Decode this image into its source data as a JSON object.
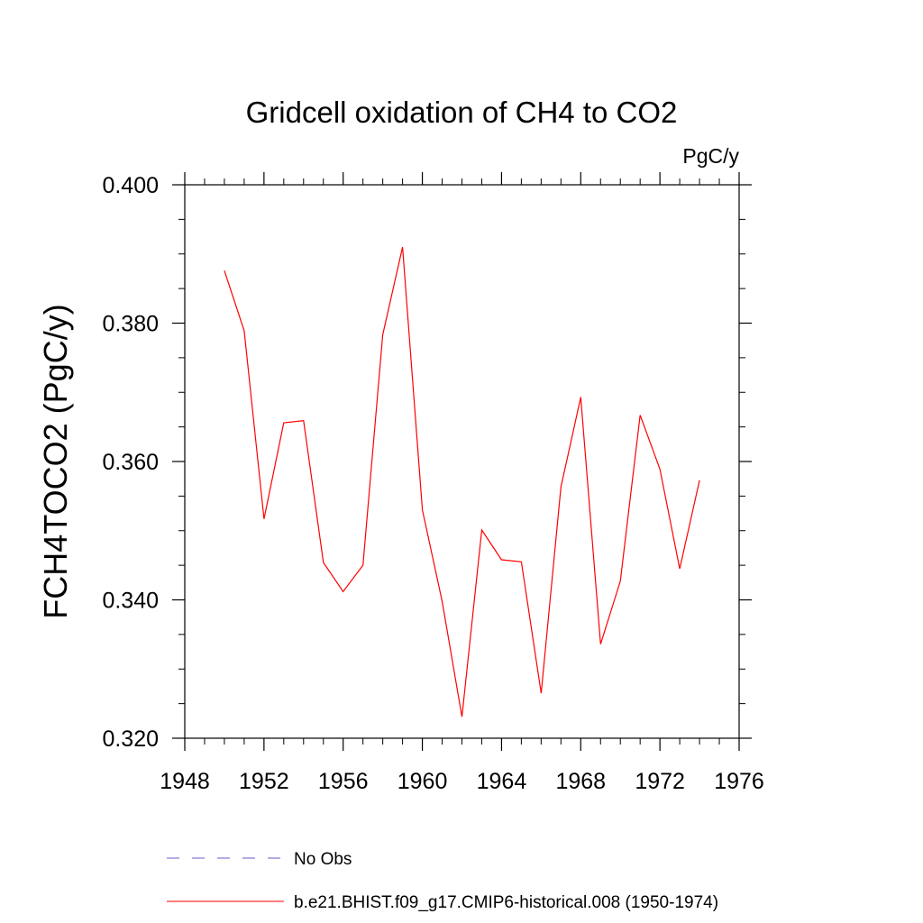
{
  "chart_data": {
    "type": "line",
    "title": "Gridcell oxidation of CH4 to CO2",
    "units": "PgC/y",
    "xlabel": "",
    "ylabel": "FCH4TOCO2  (PgC/y)",
    "xlim": [
      1948,
      1976
    ],
    "ylim": [
      0.32,
      0.4
    ],
    "x_ticks": [
      "1948",
      "1952",
      "1956",
      "1960",
      "1964",
      "1968",
      "1972",
      "1976"
    ],
    "y_ticks": [
      "0.320",
      "0.340",
      "0.360",
      "0.380",
      "0.400"
    ],
    "grid": false,
    "legend_position": "bottom",
    "series": [
      {
        "name": "No Obs",
        "color": "#6a5acd",
        "style": "dashed",
        "x": [],
        "values": []
      },
      {
        "name": "b.e21.BHIST.f09_g17.CMIP6-historical.008 (1950-1974)",
        "color": "#ff0000",
        "style": "solid",
        "x": [
          1950,
          1951,
          1952,
          1953,
          1954,
          1955,
          1956,
          1957,
          1958,
          1959,
          1960,
          1961,
          1962,
          1963,
          1964,
          1965,
          1966,
          1967,
          1968,
          1969,
          1970,
          1971,
          1972,
          1973,
          1974
        ],
        "values": [
          0.3876,
          0.3789,
          0.3517,
          0.3656,
          0.3659,
          0.3454,
          0.3412,
          0.345,
          0.3783,
          0.391,
          0.353,
          0.3398,
          0.3231,
          0.3501,
          0.3458,
          0.3455,
          0.3265,
          0.3563,
          0.3693,
          0.3336,
          0.3427,
          0.3667,
          0.3589,
          0.3445,
          0.3573
        ]
      }
    ]
  }
}
